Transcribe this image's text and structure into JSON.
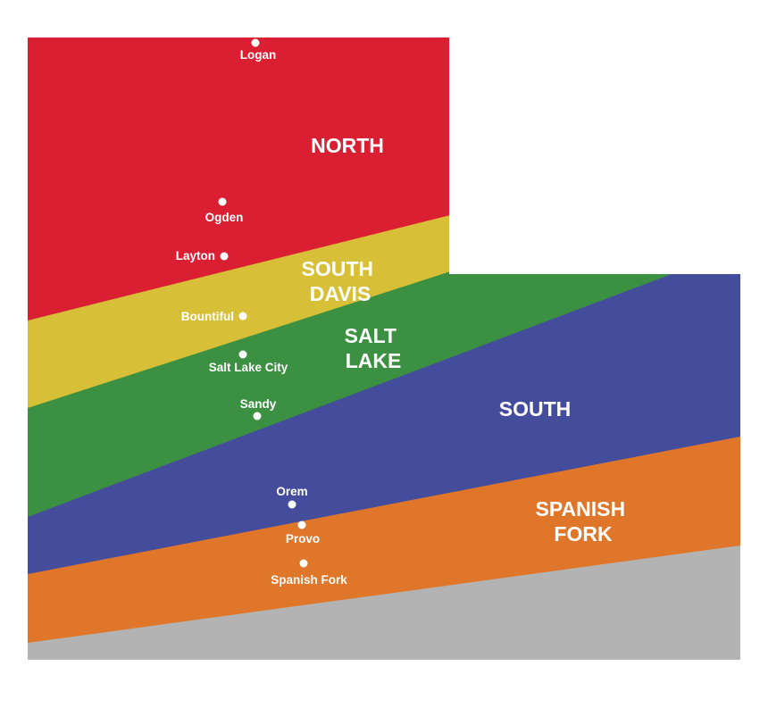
{
  "regions": [
    {
      "id": "north",
      "lines": [
        "NORTH"
      ],
      "color": "#da1f33"
    },
    {
      "id": "south-davis",
      "lines": [
        "SOUTH",
        "DAVIS"
      ],
      "color": "#d8bf38"
    },
    {
      "id": "salt-lake",
      "lines": [
        "SALT",
        "LAKE"
      ],
      "color": "#3c9042"
    },
    {
      "id": "south",
      "lines": [
        "SOUTH"
      ],
      "color": "#444c9c"
    },
    {
      "id": "spanish-fork",
      "lines": [
        "SPANISH",
        "FORK"
      ],
      "color": "#e07629"
    },
    {
      "id": "unassigned",
      "lines": [],
      "color": "#b3b3b3"
    }
  ],
  "cities": [
    {
      "id": "logan",
      "name": "Logan"
    },
    {
      "id": "ogden",
      "name": "Ogden"
    },
    {
      "id": "layton",
      "name": "Layton"
    },
    {
      "id": "bountiful",
      "name": "Bountiful"
    },
    {
      "id": "salt-lake-city",
      "name": "Salt Lake City"
    },
    {
      "id": "sandy",
      "name": "Sandy"
    },
    {
      "id": "orem",
      "name": "Orem"
    },
    {
      "id": "provo",
      "name": "Provo"
    },
    {
      "id": "spanish-fork",
      "name": "Spanish Fork"
    }
  ],
  "background": "#ffffff",
  "dot_color": "#ffffff"
}
